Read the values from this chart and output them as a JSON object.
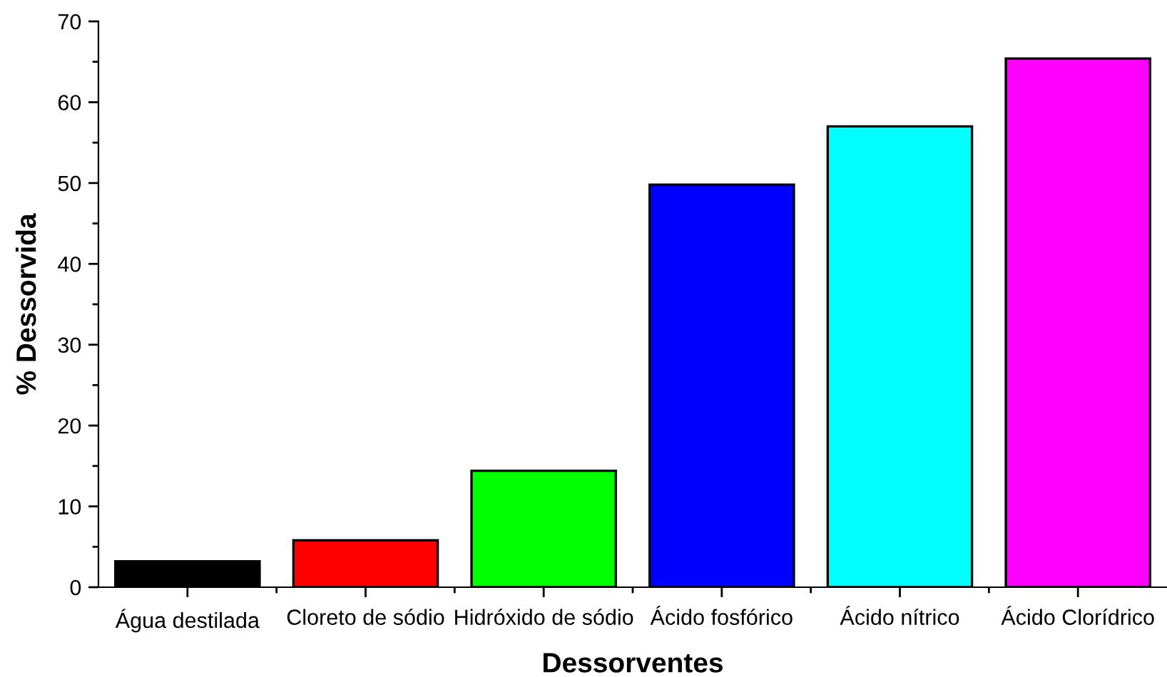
{
  "chart_data": {
    "type": "bar",
    "xlabel": "Dessorventes",
    "ylabel": "% Dessorvida",
    "categories": [
      "Água destilada",
      "Cloreto de sódio",
      "Hidróxido de sódio",
      "Ácido fosfórico",
      "Ácido nítrico",
      "Ácido Clorídrico"
    ],
    "values": [
      3.2,
      5.8,
      14.4,
      49.8,
      57.0,
      65.4
    ],
    "colors": [
      "#000000",
      "#ff0000",
      "#00ff00",
      "#0000ff",
      "#00ffff",
      "#ff00ff"
    ],
    "ylim": [
      0,
      70
    ],
    "yticks": [
      0,
      10,
      20,
      30,
      40,
      50,
      60,
      70
    ],
    "grid": false
  }
}
